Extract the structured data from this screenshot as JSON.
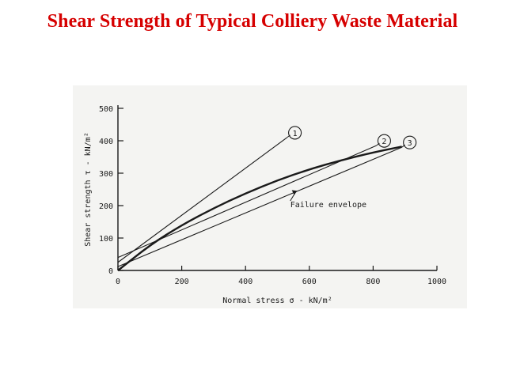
{
  "title": "Shear Strength of Typical Colliery Waste Material",
  "colors": {
    "title": "#d60000",
    "ink": "#1a1a1a",
    "paper": "#f4f4f2"
  },
  "chart_data": {
    "type": "line",
    "title": "",
    "xlabel": "Normal stress σ - kN/m²",
    "ylabel": "Shear strength τ - kN/m²",
    "xlim": [
      0,
      1000
    ],
    "ylim": [
      0,
      500
    ],
    "xticks": [
      "0",
      "200",
      "400",
      "600",
      "800",
      "1000"
    ],
    "yticks": [
      "0",
      "100",
      "200",
      "300",
      "400",
      "500"
    ],
    "grid": false,
    "series": [
      {
        "name": "1",
        "x": [
          0,
          530
        ],
        "y": [
          25,
          410
        ]
      },
      {
        "name": "2",
        "x": [
          0,
          810
        ],
        "y": [
          40,
          385
        ]
      },
      {
        "name": "3",
        "x": [
          0,
          890
        ],
        "y": [
          12,
          380
        ]
      },
      {
        "name": "Failure envelope",
        "x": [
          0,
          100,
          200,
          300,
          400,
          500,
          600,
          700,
          800,
          890
        ],
        "y": [
          0,
          78,
          140,
          192,
          238,
          278,
          312,
          340,
          364,
          382
        ]
      }
    ],
    "annotations": [
      {
        "text": "Failure envelope",
        "x": 565,
        "y": 205
      }
    ]
  }
}
